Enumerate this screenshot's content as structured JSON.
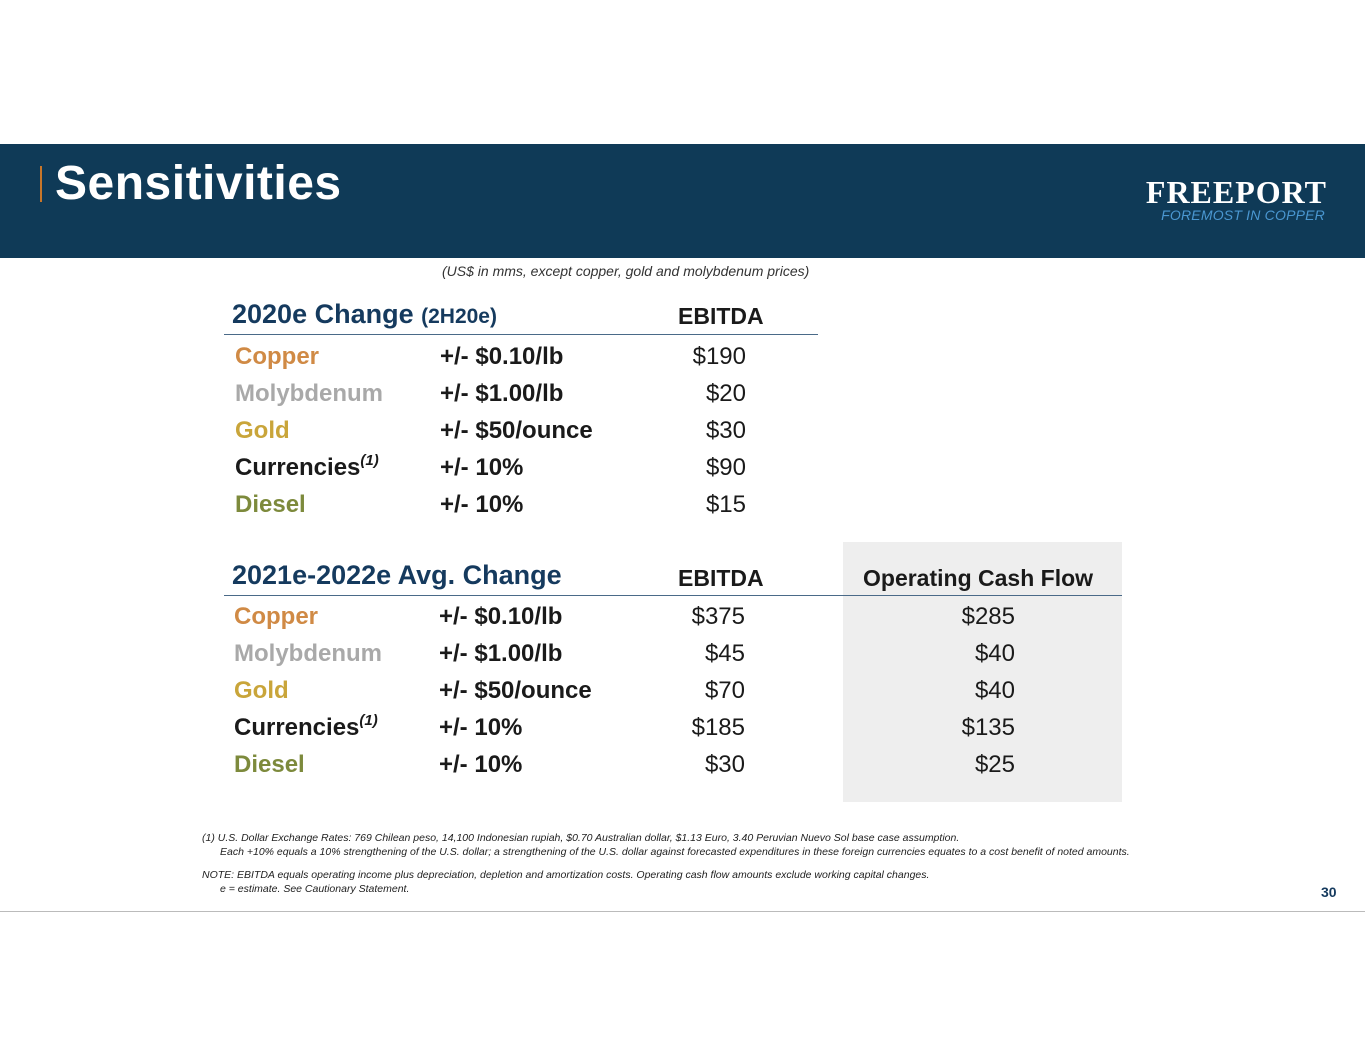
{
  "header": {
    "title": "Sensitivities",
    "logo_name": "FREEPORT",
    "logo_tagline": "FOREMOST IN COPPER"
  },
  "subtitle": "(US$ in mms, except copper, gold and molybdenum prices)",
  "colors": {
    "header_bg": "#0f3a57",
    "title_accent": "#c8762a",
    "section_title": "#153a5e",
    "copper": "#d08a45",
    "molybdenum": "#a9a9a9",
    "gold": "#c9a53a",
    "currencies": "#1a1a1a",
    "diesel": "#7d8a3c",
    "ocf_bg": "#eeeeee"
  },
  "section1": {
    "title": "2020e Change",
    "title_sub": "(2H20e)",
    "col_ebitda": "EBITDA",
    "rows": [
      {
        "item": "Copper",
        "sup": "",
        "change": "+/- $0.10/lb",
        "ebitda": "$190",
        "color_key": "copper"
      },
      {
        "item": "Molybdenum",
        "sup": "",
        "change": "+/- $1.00/lb",
        "ebitda": "$20",
        "color_key": "molybdenum"
      },
      {
        "item": "Gold",
        "sup": "",
        "change": "+/- $50/ounce",
        "ebitda": "$30",
        "color_key": "gold"
      },
      {
        "item": "Currencies",
        "sup": "(1)",
        "change": "+/- 10%",
        "ebitda": "$90",
        "color_key": "currencies"
      },
      {
        "item": "Diesel",
        "sup": "",
        "change": "+/- 10%",
        "ebitda": "$15",
        "color_key": "diesel"
      }
    ]
  },
  "section2": {
    "title": "2021e-2022e Avg. Change",
    "col_ebitda": "EBITDA",
    "col_ocf": "Operating Cash Flow",
    "rows": [
      {
        "item": "Copper",
        "sup": "",
        "change": "+/- $0.10/lb",
        "ebitda": "$375",
        "ocf": "$285",
        "color_key": "copper"
      },
      {
        "item": "Molybdenum",
        "sup": "",
        "change": "+/- $1.00/lb",
        "ebitda": "$45",
        "ocf": "$40",
        "color_key": "molybdenum"
      },
      {
        "item": "Gold",
        "sup": "",
        "change": "+/- $50/ounce",
        "ebitda": "$70",
        "ocf": "$40",
        "color_key": "gold"
      },
      {
        "item": "Currencies",
        "sup": "(1)",
        "change": "+/- 10%",
        "ebitda": "$185",
        "ocf": "$135",
        "color_key": "currencies"
      },
      {
        "item": "Diesel",
        "sup": "",
        "change": "+/- 10%",
        "ebitda": "$30",
        "ocf": "$25",
        "color_key": "diesel"
      }
    ]
  },
  "footnotes": {
    "line1": "(1)  U.S. Dollar Exchange Rates: 769 Chilean peso, 14,100 Indonesian rupiah, $0.70 Australian dollar, $1.13 Euro, 3.40 Peruvian Nuevo Sol base case assumption.",
    "line2": "Each +10% equals a 10% strengthening of the U.S. dollar; a strengthening of the U.S. dollar against forecasted expenditures in these foreign currencies equates to a cost benefit of noted amounts.",
    "line3": "NOTE: EBITDA equals operating income plus depreciation, depletion and amortization costs. Operating cash flow amounts exclude working capital changes.",
    "line4": "e = estimate. See Cautionary Statement."
  },
  "page_number": "30"
}
